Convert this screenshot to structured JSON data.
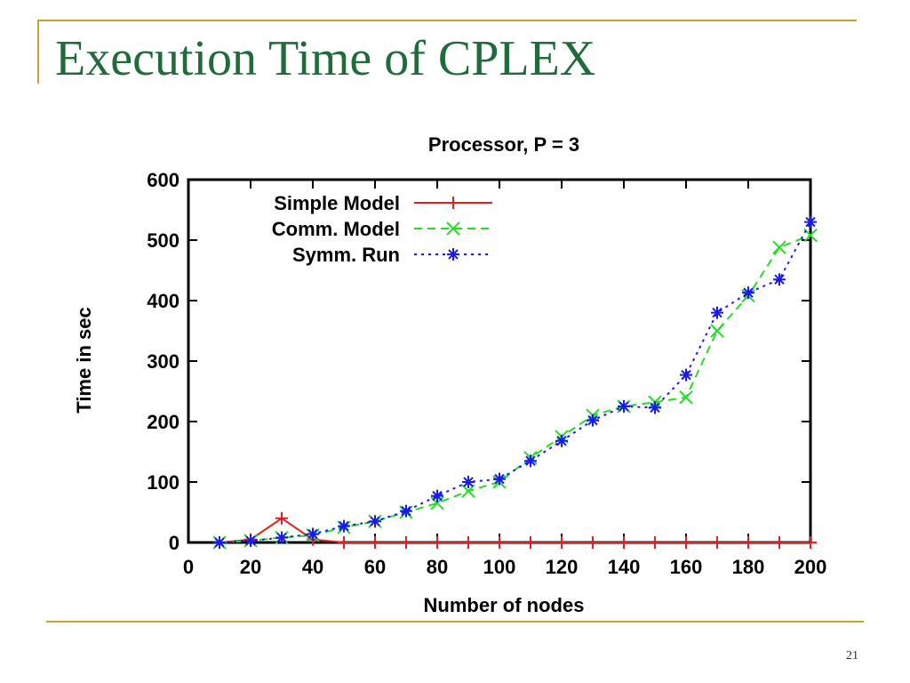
{
  "slide": {
    "title": "Execution Time of CPLEX",
    "page_number": "21",
    "accent_color": "#c9a227",
    "title_color": "#1f6b3a"
  },
  "chart_data": {
    "type": "line",
    "title": "Processor, P = 3",
    "xlabel": "Number of nodes",
    "ylabel": "Time in sec",
    "xlim": [
      0,
      200
    ],
    "ylim": [
      0,
      600
    ],
    "x_ticks": [
      0,
      20,
      40,
      60,
      80,
      100,
      120,
      140,
      160,
      180,
      200
    ],
    "y_ticks": [
      0,
      100,
      200,
      300,
      400,
      500,
      600
    ],
    "legend_position": "top-left",
    "grid": false,
    "series": [
      {
        "name": "Simple Model",
        "color": "#e02020",
        "marker": "plus",
        "dash": "solid",
        "x": [
          10,
          20,
          30,
          40,
          50,
          60,
          70,
          80,
          90,
          100,
          110,
          120,
          130,
          140,
          150,
          160,
          170,
          180,
          190,
          200
        ],
        "y": [
          0,
          5,
          40,
          5,
          0,
          0,
          0,
          0,
          0,
          0,
          0,
          0,
          0,
          0,
          0,
          0,
          0,
          0,
          0,
          0
        ]
      },
      {
        "name": "Comm. Model",
        "color": "#22dd22",
        "marker": "x",
        "dash": "dashed",
        "x": [
          10,
          20,
          30,
          40,
          50,
          60,
          70,
          80,
          90,
          100,
          110,
          120,
          130,
          140,
          150,
          160,
          170,
          180,
          190,
          200
        ],
        "y": [
          0,
          3,
          8,
          12,
          25,
          35,
          50,
          65,
          85,
          100,
          140,
          175,
          210,
          225,
          232,
          240,
          350,
          408,
          488,
          508
        ]
      },
      {
        "name": "Symm. Run",
        "color": "#1a1aee",
        "marker": "star",
        "dash": "dotted",
        "x": [
          10,
          20,
          30,
          40,
          50,
          60,
          70,
          80,
          90,
          100,
          110,
          120,
          130,
          140,
          150,
          160,
          170,
          180,
          190,
          200
        ],
        "y": [
          0,
          3,
          8,
          14,
          27,
          35,
          52,
          77,
          100,
          105,
          135,
          168,
          202,
          225,
          223,
          277,
          380,
          413,
          435,
          530
        ]
      }
    ]
  }
}
